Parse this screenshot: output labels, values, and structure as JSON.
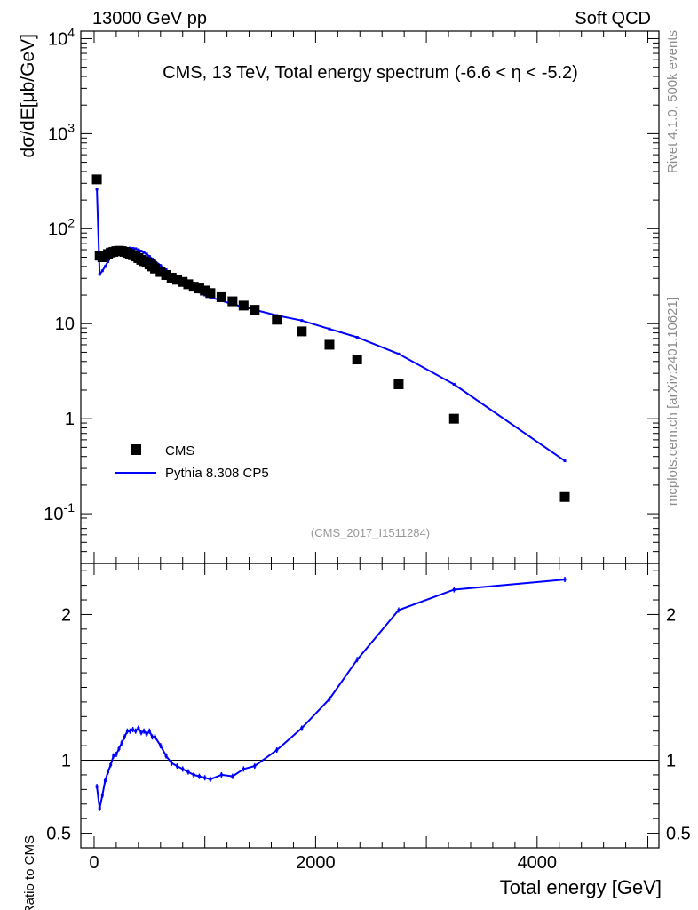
{
  "header": {
    "left": "13000 GeV pp",
    "right": "Soft QCD"
  },
  "side_labels": {
    "rivet": "Rivet 4.1.0,  500k events",
    "site": "mcplots.cern.ch [arXiv:2401.10621]"
  },
  "chart_data": [
    {
      "type": "scatter+line",
      "panel": "main",
      "title": "CMS, 13 TeV, Total energy spectrum (-6.6 < η < -5.2)",
      "ylabel": "dσ/dE[μb/GeV]",
      "yscale": "log",
      "ylim": [
        0.03,
        12000
      ],
      "xlim": [
        -120,
        5100
      ],
      "y_tick_labels": [
        "10^4",
        "10^3",
        "10^2",
        "10",
        "1",
        "10^-1"
      ],
      "watermark": "(CMS_2017_I1511284)",
      "legend": [
        "CMS",
        "Pythia 8.308 CP5"
      ],
      "series": [
        {
          "name": "CMS",
          "marker": "square",
          "color": "#000000",
          "x": [
            25,
            50,
            75,
            100,
            125,
            150,
            175,
            200,
            225,
            250,
            275,
            300,
            325,
            350,
            375,
            400,
            425,
            450,
            475,
            500,
            525,
            550,
            600,
            650,
            700,
            750,
            800,
            850,
            900,
            950,
            1000,
            1050,
            1150,
            1250,
            1350,
            1450,
            1650,
            1875,
            2125,
            2375,
            2750,
            3250,
            4250
          ],
          "y": [
            330,
            52,
            50,
            52,
            54,
            56,
            57,
            58,
            58.5,
            58,
            57,
            55.5,
            54,
            52.5,
            51,
            49,
            47,
            45.5,
            44,
            42,
            40,
            38,
            35,
            32.5,
            30.5,
            29,
            27.5,
            26,
            24.5,
            23.5,
            22.3,
            21,
            19,
            17.2,
            15.5,
            14,
            11,
            8.3,
            6.0,
            4.2,
            2.3,
            1.0,
            0.15
          ]
        },
        {
          "name": "Pythia 8.308 CP5",
          "marker": "line",
          "color": "#0000ff",
          "x": [
            25,
            50,
            75,
            100,
            125,
            150,
            175,
            200,
            225,
            250,
            275,
            300,
            325,
            350,
            375,
            400,
            425,
            450,
            475,
            500,
            525,
            550,
            600,
            650,
            700,
            750,
            800,
            850,
            900,
            950,
            1000,
            1050,
            1150,
            1250,
            1350,
            1450,
            1650,
            1875,
            2125,
            2375,
            2750,
            3250,
            4250
          ],
          "y": [
            260,
            33,
            36,
            40,
            45,
            50,
            54,
            57,
            59,
            60.5,
            61.5,
            62,
            62.5,
            62,
            61.5,
            60,
            58,
            56,
            54,
            51,
            48,
            45.5,
            41,
            37,
            33,
            30,
            27.5,
            25,
            23,
            21.5,
            20,
            19,
            17.5,
            16,
            15,
            14,
            12.2,
            10.8,
            8.8,
            7.2,
            4.8,
            2.3,
            0.36
          ]
        }
      ]
    },
    {
      "type": "line",
      "panel": "ratio",
      "ylabel": "Ratio to CMS",
      "xlabel": "Total energy [GeV]",
      "ylim": [
        0.4,
        2.35
      ],
      "xlim": [
        -120,
        5100
      ],
      "y_ticks": [
        0.5,
        1,
        2
      ],
      "y_tick_labels": [
        "0.5",
        "1",
        "2"
      ],
      "x_ticks": [
        0,
        2000,
        4000
      ],
      "x_tick_labels": [
        "0",
        "2000",
        "4000"
      ],
      "reference_line": 1,
      "series": [
        {
          "name": "Pythia 8.308 CP5 / CMS",
          "color": "#0000ff",
          "x": [
            25,
            50,
            75,
            100,
            125,
            150,
            175,
            200,
            225,
            250,
            275,
            300,
            325,
            350,
            375,
            400,
            425,
            450,
            475,
            500,
            525,
            550,
            600,
            650,
            700,
            750,
            800,
            850,
            900,
            950,
            1000,
            1050,
            1150,
            1250,
            1350,
            1450,
            1650,
            1875,
            2125,
            2375,
            2750,
            3250,
            4250
          ],
          "y": [
            0.82,
            0.67,
            0.76,
            0.86,
            0.92,
            0.97,
            1.03,
            1.04,
            1.08,
            1.12,
            1.16,
            1.2,
            1.2,
            1.21,
            1.2,
            1.22,
            1.19,
            1.2,
            1.18,
            1.2,
            1.16,
            1.16,
            1.1,
            1.03,
            0.98,
            0.96,
            0.94,
            0.92,
            0.9,
            0.89,
            0.88,
            0.87,
            0.9,
            0.89,
            0.94,
            0.96,
            1.07,
            1.22,
            1.42,
            1.69,
            2.03,
            2.17,
            2.24
          ]
        }
      ]
    }
  ]
}
